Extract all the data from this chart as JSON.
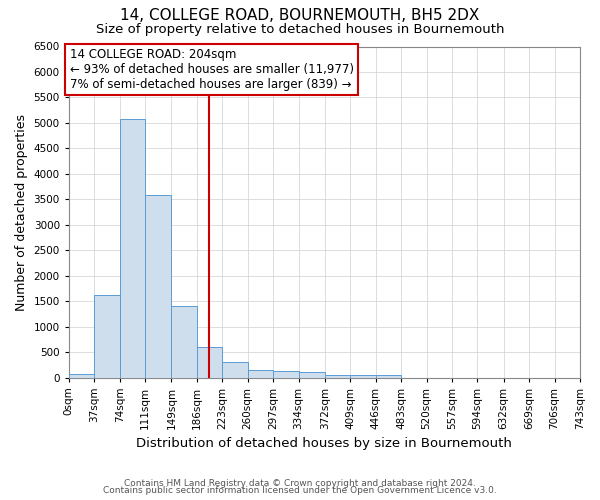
{
  "title": "14, COLLEGE ROAD, BOURNEMOUTH, BH5 2DX",
  "subtitle": "Size of property relative to detached houses in Bournemouth",
  "xlabel": "Distribution of detached houses by size in Bournemouth",
  "ylabel": "Number of detached properties",
  "footnote1": "Contains HM Land Registry data © Crown copyright and database right 2024.",
  "footnote2": "Contains public sector information licensed under the Open Government Licence v3.0.",
  "bin_edges": [
    0,
    37,
    74,
    111,
    149,
    186,
    223,
    260,
    297,
    334,
    372,
    409,
    446,
    483,
    520,
    557,
    594,
    632,
    669,
    706,
    743
  ],
  "bar_heights": [
    75,
    1625,
    5075,
    3575,
    1400,
    600,
    300,
    150,
    125,
    100,
    50,
    50,
    50,
    0,
    0,
    0,
    0,
    0,
    0,
    0
  ],
  "bar_facecolor": "#cfdeed",
  "bar_edgecolor": "#5b9bd5",
  "property_size": 204,
  "vline_color": "#cc0000",
  "annotation_line1": "14 COLLEGE ROAD: 204sqm",
  "annotation_line2": "← 93% of detached houses are smaller (11,977)",
  "annotation_line3": "7% of semi-detached houses are larger (839) →",
  "annotation_box_color": "#cc0000",
  "ylim": [
    0,
    6500
  ],
  "xlim": [
    0,
    743
  ],
  "grid_color": "#d0d0d0",
  "title_fontsize": 11,
  "subtitle_fontsize": 9.5,
  "tick_label_size": 7.5,
  "ylabel_fontsize": 9,
  "xlabel_fontsize": 9.5,
  "footnote_fontsize": 6.5,
  "annotation_fontsize": 8.5
}
